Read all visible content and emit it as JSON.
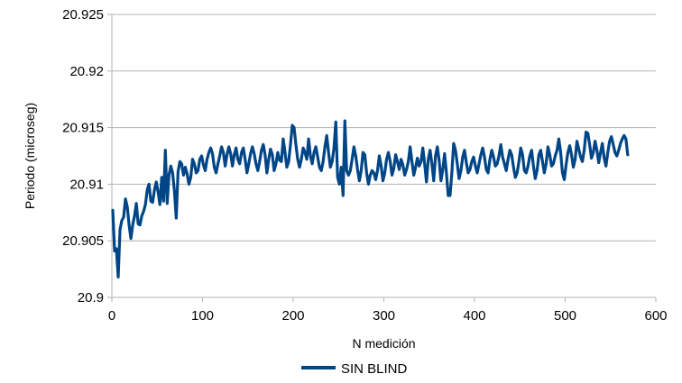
{
  "chart_data": {
    "type": "line",
    "xlabel": "N medición",
    "ylabel": "Periodo (microseg)",
    "xlim": [
      0,
      600
    ],
    "ylim": [
      20.9,
      20.925
    ],
    "x_ticks": [
      0,
      100,
      200,
      300,
      400,
      500,
      600
    ],
    "x_tick_labels": [
      "0",
      "100",
      "200",
      "300",
      "400",
      "500",
      "600"
    ],
    "y_ticks": [
      20.9,
      20.905,
      20.91,
      20.915,
      20.92,
      20.925
    ],
    "y_tick_labels": [
      "20.9",
      "20.905",
      "20.91",
      "20.915",
      "20.92",
      "20.925"
    ],
    "grid": "horizontal",
    "legend": "bottom",
    "colors": {
      "series": "#004586",
      "grid": "#b3b3b3",
      "axis": "#b3b3b3"
    },
    "series": [
      {
        "name": "SIN BLIND",
        "x_start": 1,
        "x_step": 2,
        "values": [
          20.9077,
          20.9041,
          20.9043,
          20.9018,
          20.906,
          20.9068,
          20.9071,
          20.9087,
          20.908,
          20.9064,
          20.9052,
          20.9064,
          20.9072,
          20.9083,
          20.9065,
          20.9064,
          20.9072,
          20.9076,
          20.9082,
          20.9095,
          20.91,
          20.9085,
          20.9084,
          20.9095,
          20.9102,
          20.9093,
          20.9082,
          20.9106,
          20.9085,
          20.913,
          20.9083,
          20.9108,
          20.9116,
          20.911,
          20.9094,
          20.907,
          20.9111,
          20.912,
          20.9118,
          20.9108,
          20.9115,
          20.9109,
          20.91,
          20.9106,
          20.9122,
          20.9118,
          20.911,
          20.9112,
          20.9122,
          20.9125,
          20.9117,
          20.9112,
          20.9122,
          20.9128,
          20.9132,
          20.9127,
          20.9115,
          20.911,
          20.9118,
          20.9125,
          20.9133,
          20.9128,
          20.9116,
          20.9126,
          20.9133,
          20.9127,
          20.9116,
          20.9126,
          20.9132,
          20.9122,
          20.9118,
          20.9128,
          20.9132,
          20.9122,
          20.911,
          20.9118,
          20.9127,
          20.9133,
          20.9127,
          20.9118,
          20.9112,
          20.912,
          20.913,
          20.9135,
          20.9126,
          20.911,
          20.9122,
          20.9131,
          20.9126,
          20.9112,
          20.9118,
          20.9128,
          20.9121,
          20.912,
          20.914,
          20.9128,
          20.9115,
          20.912,
          20.9135,
          20.9152,
          20.915,
          20.9135,
          20.9122,
          20.9115,
          20.9122,
          20.9132,
          20.9128,
          20.9122,
          20.914,
          20.9125,
          20.9118,
          20.9128,
          20.9133,
          20.9124,
          20.9115,
          20.9112,
          20.912,
          20.9133,
          20.9143,
          20.9128,
          20.9115,
          20.912,
          20.9132,
          20.9155,
          20.9106,
          20.91,
          20.9115,
          20.909,
          20.9156,
          20.9112,
          20.9108,
          20.9112,
          20.9122,
          20.9133,
          20.9125,
          20.9113,
          20.9103,
          20.9112,
          20.9128,
          20.9126,
          20.911,
          20.91,
          20.9108,
          20.9112,
          20.911,
          20.9104,
          20.9112,
          20.9125,
          20.9116,
          20.9103,
          20.911,
          20.9122,
          20.9128,
          20.912,
          20.9108,
          20.9114,
          20.9126,
          20.912,
          20.9113,
          20.9122,
          20.9117,
          20.9108,
          20.9113,
          20.912,
          20.9133,
          20.912,
          20.9108,
          20.9115,
          20.9123,
          20.9116,
          20.912,
          20.9132,
          20.9118,
          20.9102,
          20.9122,
          20.913,
          20.9118,
          20.9103,
          20.9125,
          20.9133,
          20.9121,
          20.9103,
          20.9113,
          20.9127,
          20.911,
          20.909,
          20.909,
          20.911,
          20.9136,
          20.913,
          20.9118,
          20.9105,
          20.9112,
          20.9124,
          20.913,
          20.9119,
          20.911,
          20.9113,
          20.912,
          20.9124,
          20.9116,
          20.911,
          20.9118,
          20.9126,
          20.9132,
          20.9124,
          20.9113,
          20.911,
          20.9122,
          20.913,
          20.9124,
          20.9116,
          20.9118,
          20.9125,
          20.9135,
          20.9124,
          20.9118,
          20.9112,
          20.9122,
          20.913,
          20.9126,
          20.9115,
          20.9106,
          20.911,
          20.912,
          20.9132,
          20.9126,
          20.9112,
          20.911,
          20.9116,
          20.9125,
          20.913,
          20.9116,
          20.9105,
          20.9112,
          20.9126,
          20.913,
          20.912,
          20.911,
          20.9118,
          20.9133,
          20.9126,
          20.9116,
          20.9118,
          20.9125,
          20.913,
          20.914,
          20.9128,
          20.911,
          20.9104,
          20.9117,
          20.9128,
          20.9134,
          20.9126,
          20.9115,
          20.9122,
          20.9138,
          20.9131,
          20.9124,
          20.912,
          20.913,
          20.9146,
          20.9145,
          20.9135,
          20.9123,
          20.9128,
          20.9138,
          20.913,
          20.9119,
          20.9128,
          20.9136,
          20.9123,
          20.9116,
          20.9128,
          20.9138,
          20.9142,
          20.9135,
          20.9128,
          20.9125,
          20.913,
          20.9136,
          20.914,
          20.9143,
          20.914,
          20.9126
        ]
      }
    ]
  }
}
